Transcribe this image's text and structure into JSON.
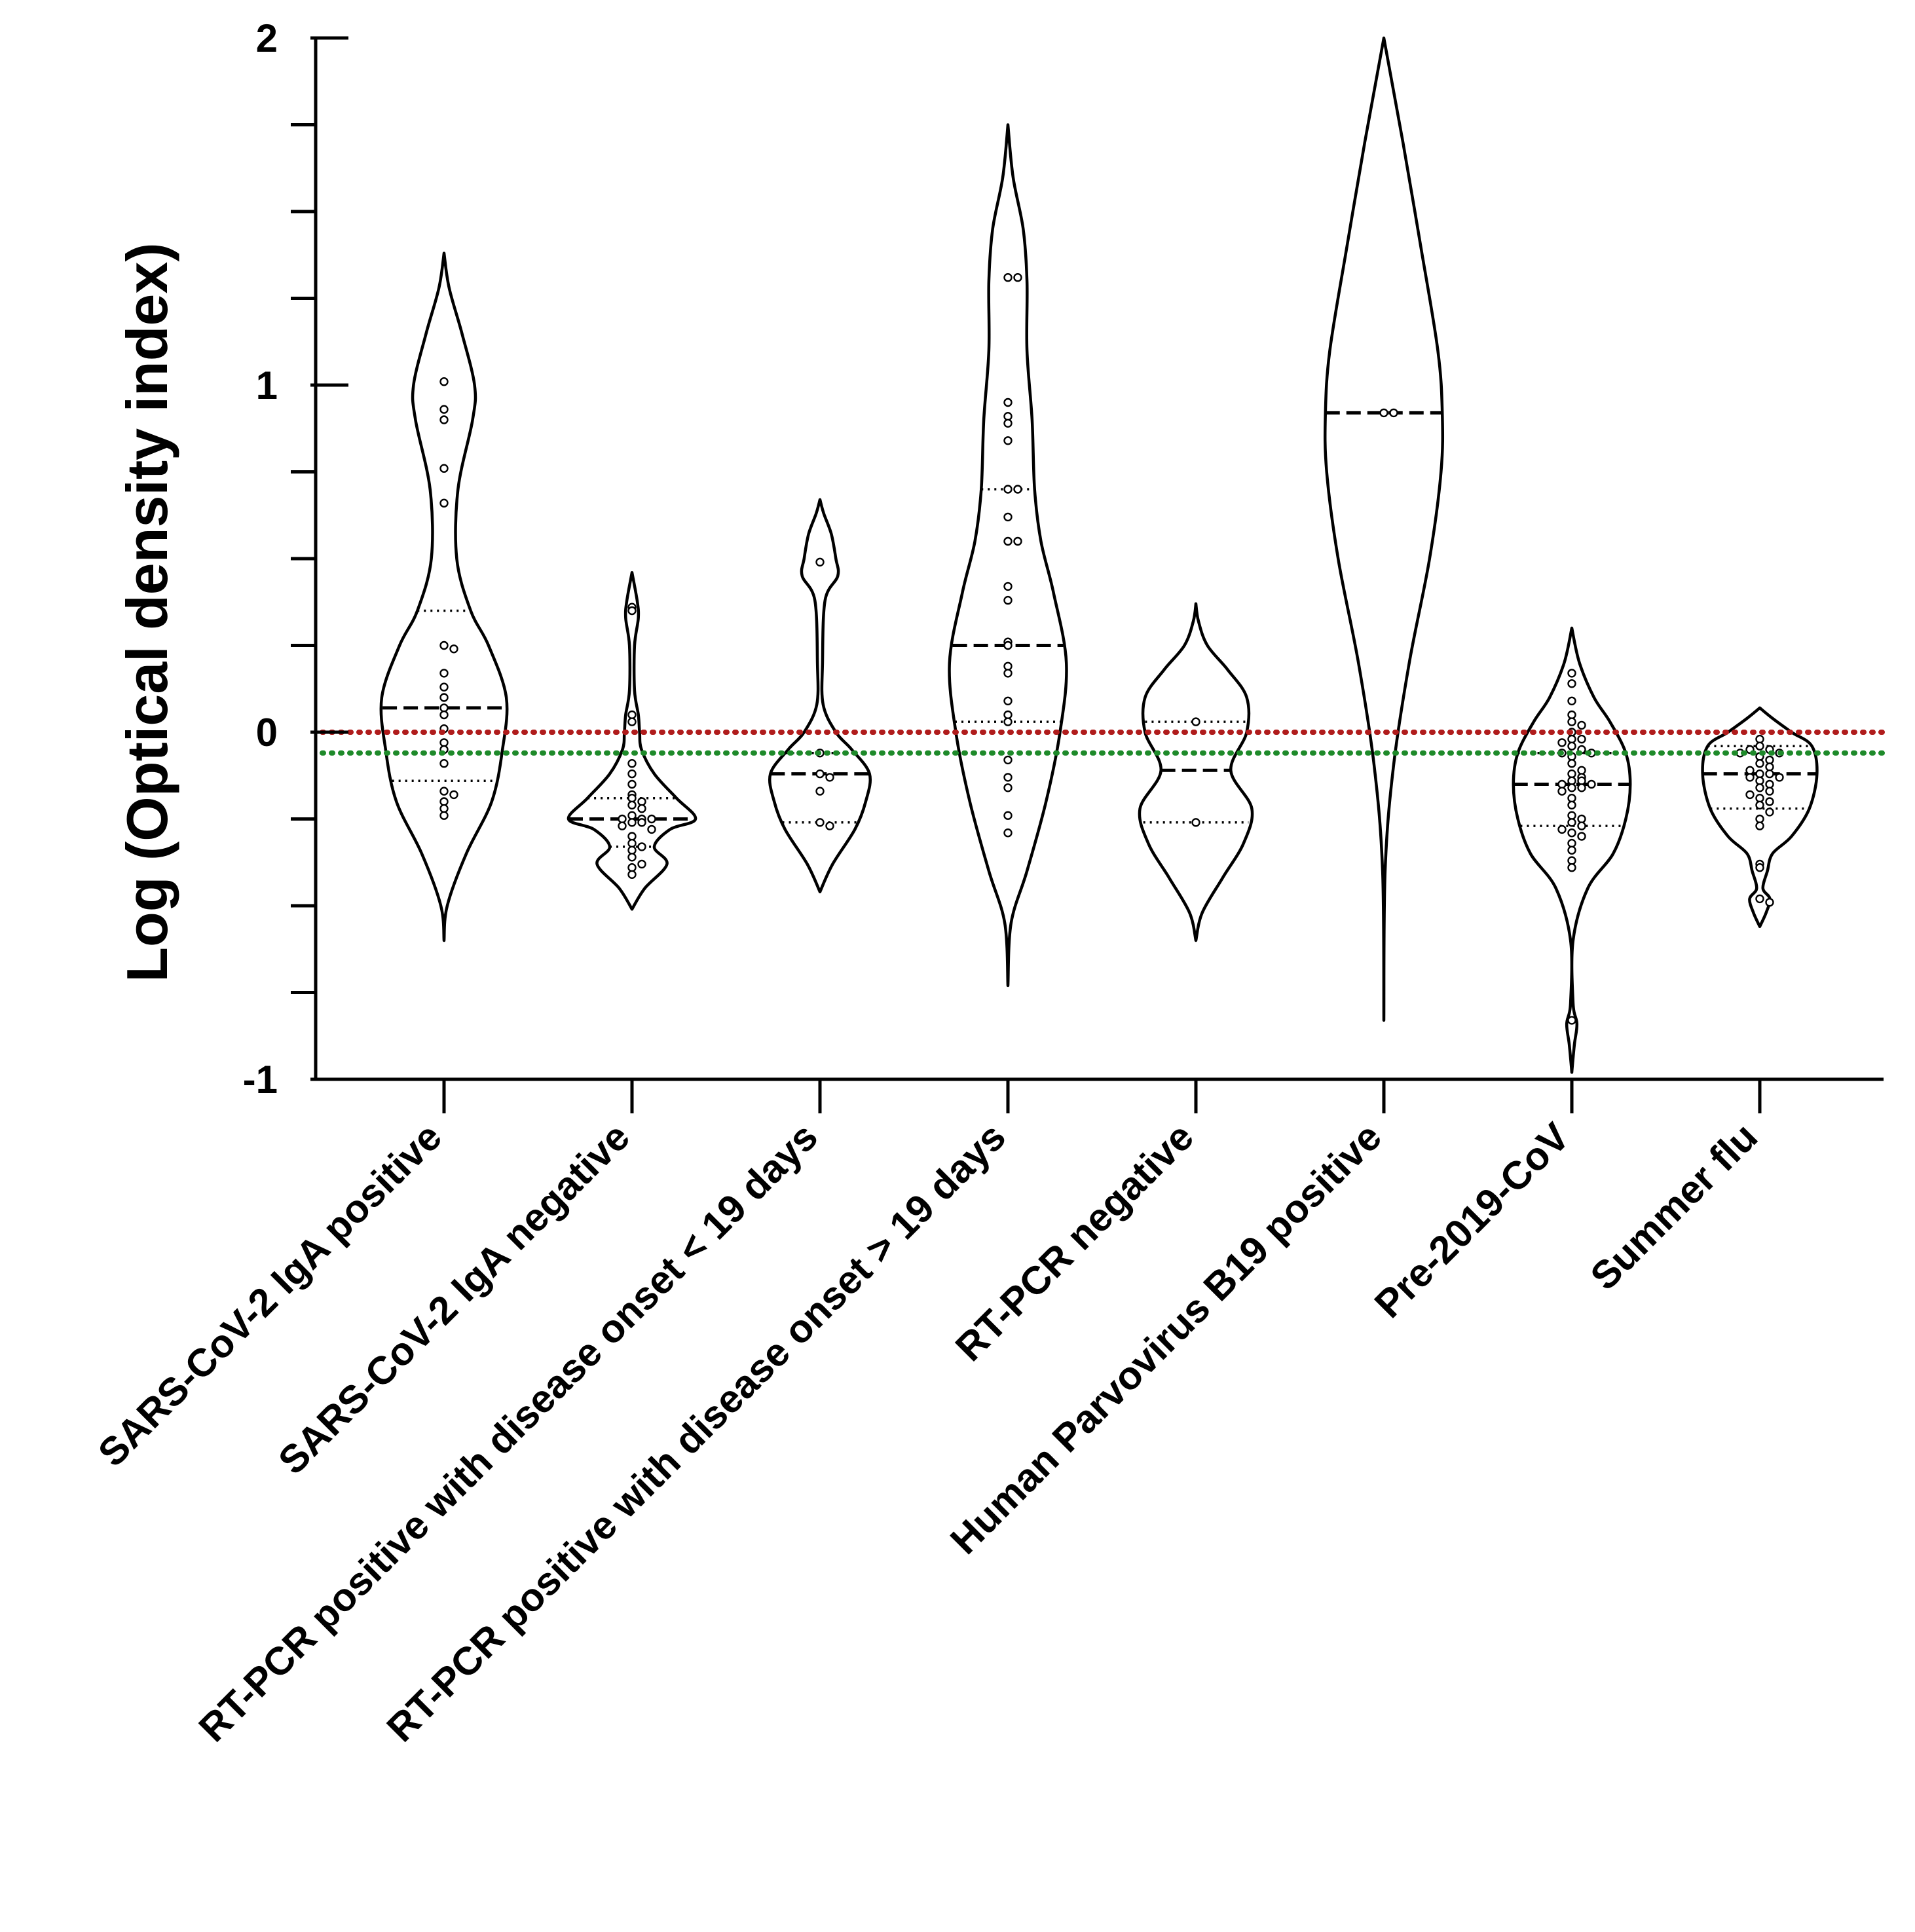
{
  "chart_data": {
    "type": "violin",
    "title": "",
    "xlabel": "",
    "ylabel": "Log (Optical density index)",
    "ylim": [
      -1,
      2
    ],
    "yticks": [
      -1,
      0,
      1,
      2
    ],
    "ytick_labels": [
      "-1",
      "0",
      "1",
      "2"
    ],
    "reference_lines": [
      {
        "name": "red-threshold",
        "value": 0.0,
        "color": "#b01c1c"
      },
      {
        "name": "green-threshold",
        "value": -0.06,
        "color": "#1e8a2a"
      }
    ],
    "categories": [
      "SARS-CoV-2 IgA positive",
      "SARS-CoV-2 IgA negative",
      "RT-PCR positive with disease onset < 19 days",
      "RT-PCR positive with disease onset > 19 days",
      "RT-PCR negative",
      "Human Parvovirus B19 positive",
      "Pre-2019-CoV",
      "Summer flu"
    ],
    "groups": [
      {
        "name": "SARS-CoV-2 IgA positive",
        "min": -0.6,
        "max": 1.38,
        "median": 0.07,
        "q1": -0.14,
        "q3": 0.35,
        "density": [
          [
            -0.6,
            0.0
          ],
          [
            -0.5,
            0.05
          ],
          [
            -0.35,
            0.35
          ],
          [
            -0.2,
            0.75
          ],
          [
            -0.05,
            0.92
          ],
          [
            0.1,
            0.98
          ],
          [
            0.25,
            0.7
          ],
          [
            0.35,
            0.42
          ],
          [
            0.5,
            0.2
          ],
          [
            0.7,
            0.22
          ],
          [
            0.9,
            0.45
          ],
          [
            1.0,
            0.48
          ],
          [
            1.15,
            0.28
          ],
          [
            1.28,
            0.08
          ],
          [
            1.38,
            0.0
          ]
        ],
        "points": [
          1.01,
          0.93,
          0.9,
          0.76,
          0.66,
          0.25,
          0.24,
          0.17,
          0.13,
          0.1,
          0.07,
          0.05,
          0.01,
          -0.03,
          -0.05,
          -0.09,
          -0.17,
          -0.18,
          -0.2,
          -0.22,
          -0.24
        ]
      },
      {
        "name": "SARS-CoV-2 IgA negative",
        "min": -0.51,
        "max": 0.46,
        "median": -0.25,
        "q1": -0.33,
        "q3": -0.19,
        "density": [
          [
            -0.51,
            0.0
          ],
          [
            -0.45,
            0.2
          ],
          [
            -0.38,
            0.55
          ],
          [
            -0.33,
            0.35
          ],
          [
            -0.28,
            0.6
          ],
          [
            -0.25,
            1.0
          ],
          [
            -0.19,
            0.7
          ],
          [
            -0.12,
            0.35
          ],
          [
            -0.05,
            0.15
          ],
          [
            0.0,
            0.12
          ],
          [
            0.05,
            0.1
          ],
          [
            0.12,
            0.04
          ],
          [
            0.25,
            0.04
          ],
          [
            0.33,
            0.1
          ],
          [
            0.38,
            0.08
          ],
          [
            0.46,
            0.0
          ]
        ],
        "points": [
          0.36,
          0.35,
          0.05,
          0.03,
          -0.09,
          -0.12,
          -0.15,
          -0.18,
          -0.19,
          -0.2,
          -0.21,
          -0.22,
          -0.24,
          -0.25,
          -0.25,
          -0.25,
          -0.26,
          -0.26,
          -0.27,
          -0.28,
          -0.3,
          -0.32,
          -0.33,
          -0.34,
          -0.36,
          -0.38,
          -0.39,
          -0.41
        ]
      },
      {
        "name": "RT-PCR positive with disease onset < 19 days",
        "min": -0.46,
        "max": 0.67,
        "median": -0.12,
        "q1": -0.26,
        "q3": -0.06,
        "density": [
          [
            -0.46,
            0.0
          ],
          [
            -0.38,
            0.2
          ],
          [
            -0.28,
            0.55
          ],
          [
            -0.2,
            0.72
          ],
          [
            -0.12,
            0.78
          ],
          [
            -0.05,
            0.5
          ],
          [
            0.0,
            0.25
          ],
          [
            0.08,
            0.05
          ],
          [
            0.2,
            0.04
          ],
          [
            0.38,
            0.08
          ],
          [
            0.45,
            0.28
          ],
          [
            0.5,
            0.25
          ],
          [
            0.57,
            0.18
          ],
          [
            0.63,
            0.06
          ],
          [
            0.67,
            0.0
          ]
        ],
        "points": [
          0.49,
          -0.06,
          -0.12,
          -0.13,
          -0.17,
          -0.26,
          -0.27
        ]
      },
      {
        "name": "RT-PCR positive with disease onset > 19 days",
        "min": -0.73,
        "max": 1.75,
        "median": 0.25,
        "q1": 0.03,
        "q3": 0.7,
        "density": [
          [
            -0.73,
            0.0
          ],
          [
            -0.55,
            0.05
          ],
          [
            -0.4,
            0.3
          ],
          [
            -0.2,
            0.6
          ],
          [
            0.0,
            0.82
          ],
          [
            0.2,
            0.92
          ],
          [
            0.4,
            0.72
          ],
          [
            0.55,
            0.52
          ],
          [
            0.7,
            0.42
          ],
          [
            0.9,
            0.38
          ],
          [
            1.1,
            0.3
          ],
          [
            1.3,
            0.3
          ],
          [
            1.45,
            0.24
          ],
          [
            1.6,
            0.08
          ],
          [
            1.75,
            0.0
          ]
        ],
        "points": [
          1.31,
          1.31,
          0.95,
          0.91,
          0.89,
          0.84,
          0.7,
          0.7,
          0.62,
          0.55,
          0.55,
          0.42,
          0.38,
          0.26,
          0.25,
          0.19,
          0.17,
          0.09,
          0.05,
          0.03,
          -0.08,
          -0.13,
          -0.16,
          -0.24,
          -0.29
        ]
      },
      {
        "name": "RT-PCR negative",
        "min": -0.6,
        "max": 0.37,
        "median": -0.11,
        "q1": -0.26,
        "q3": 0.03,
        "density": [
          [
            -0.6,
            0.0
          ],
          [
            -0.52,
            0.1
          ],
          [
            -0.42,
            0.42
          ],
          [
            -0.32,
            0.75
          ],
          [
            -0.22,
            0.88
          ],
          [
            -0.11,
            0.55
          ],
          [
            0.0,
            0.8
          ],
          [
            0.1,
            0.8
          ],
          [
            0.18,
            0.5
          ],
          [
            0.25,
            0.18
          ],
          [
            0.32,
            0.04
          ],
          [
            0.37,
            0.0
          ]
        ],
        "points": [
          0.03,
          -0.26
        ]
      },
      {
        "name": "Human Parvovirus B19 positive",
        "min": -0.83,
        "max": 2.0,
        "median": 0.92,
        "q1": 0.92,
        "q3": 0.92,
        "density": [
          [
            -0.83,
            0.0
          ],
          [
            -0.4,
            0.02
          ],
          [
            -0.1,
            0.15
          ],
          [
            0.2,
            0.4
          ],
          [
            0.5,
            0.72
          ],
          [
            0.75,
            0.9
          ],
          [
            0.92,
            0.92
          ],
          [
            1.1,
            0.85
          ],
          [
            1.4,
            0.58
          ],
          [
            1.7,
            0.3
          ],
          [
            1.9,
            0.1
          ],
          [
            2.0,
            0.0
          ]
        ],
        "points": [
          0.92,
          0.92
        ]
      },
      {
        "name": "Pre-2019-CoV",
        "min": -0.98,
        "max": 0.3,
        "median": -0.15,
        "q1": -0.27,
        "q3": -0.06,
        "density": [
          [
            -0.98,
            0.0
          ],
          [
            -0.9,
            0.04
          ],
          [
            -0.84,
            0.08
          ],
          [
            -0.78,
            0.02
          ],
          [
            -0.6,
            0.02
          ],
          [
            -0.45,
            0.25
          ],
          [
            -0.35,
            0.65
          ],
          [
            -0.25,
            0.85
          ],
          [
            -0.15,
            0.92
          ],
          [
            -0.06,
            0.85
          ],
          [
            0.03,
            0.6
          ],
          [
            0.1,
            0.35
          ],
          [
            0.2,
            0.12
          ],
          [
            0.3,
            0.0
          ]
        ],
        "points": [
          0.17,
          0.14,
          0.09,
          0.05,
          0.03,
          0.02,
          0.0,
          -0.02,
          -0.02,
          -0.03,
          -0.04,
          -0.05,
          -0.06,
          -0.06,
          -0.07,
          -0.09,
          -0.11,
          -0.12,
          -0.13,
          -0.14,
          -0.14,
          -0.15,
          -0.15,
          -0.16,
          -0.16,
          -0.17,
          -0.19,
          -0.21,
          -0.24,
          -0.25,
          -0.26,
          -0.27,
          -0.28,
          -0.29,
          -0.3,
          -0.32,
          -0.34,
          -0.37,
          -0.39,
          -0.83
        ]
      },
      {
        "name": "Summer flu",
        "min": -0.56,
        "max": 0.07,
        "median": -0.12,
        "q1": -0.22,
        "q3": -0.04,
        "density": [
          [
            -0.56,
            0.0
          ],
          [
            -0.52,
            0.1
          ],
          [
            -0.48,
            0.16
          ],
          [
            -0.45,
            0.05
          ],
          [
            -0.4,
            0.12
          ],
          [
            -0.35,
            0.2
          ],
          [
            -0.3,
            0.5
          ],
          [
            -0.22,
            0.78
          ],
          [
            -0.12,
            0.9
          ],
          [
            -0.04,
            0.82
          ],
          [
            0.0,
            0.5
          ],
          [
            0.04,
            0.2
          ],
          [
            0.07,
            0.0
          ]
        ],
        "points": [
          -0.02,
          -0.04,
          -0.05,
          -0.05,
          -0.06,
          -0.06,
          -0.07,
          -0.08,
          -0.09,
          -0.1,
          -0.11,
          -0.12,
          -0.12,
          -0.13,
          -0.13,
          -0.14,
          -0.15,
          -0.16,
          -0.17,
          -0.18,
          -0.19,
          -0.2,
          -0.21,
          -0.23,
          -0.25,
          -0.27,
          -0.38,
          -0.39,
          -0.48,
          -0.49
        ]
      }
    ]
  }
}
